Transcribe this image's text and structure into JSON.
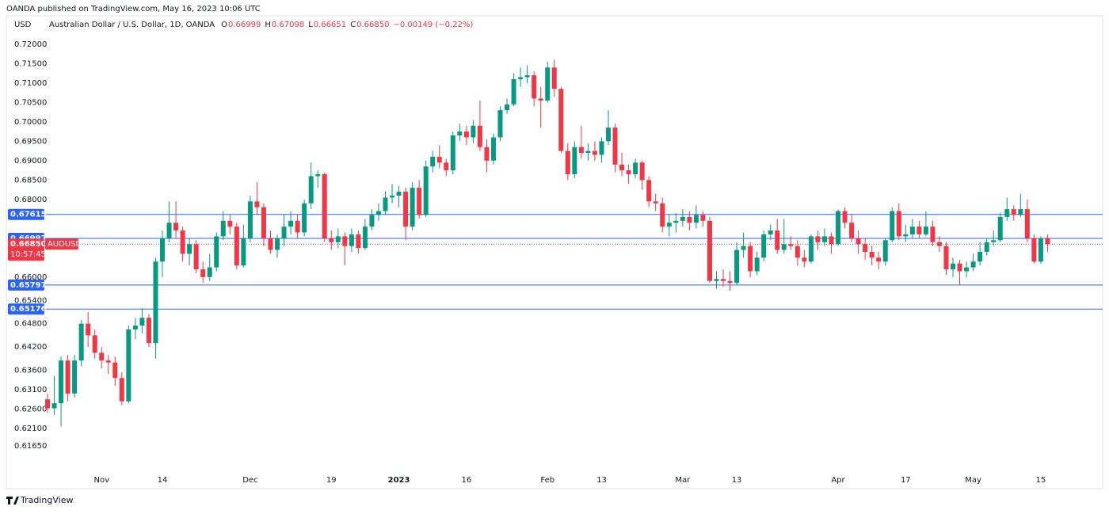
{
  "header": {
    "publisher": "OANDA published on TradingView.com, May 16, 2023 10:06 UTC"
  },
  "footer": {
    "brand": "TradingView"
  },
  "chart_data": {
    "type": "candlestick",
    "title": "Australian Dollar / U.S. Dollar, 1D, OANDA",
    "currency": "USD",
    "ohlc_legend": [
      {
        "key": "O",
        "value": "0.66999"
      },
      {
        "key": "H",
        "value": "0.67098"
      },
      {
        "key": "L",
        "value": "0.66651"
      },
      {
        "key": "C",
        "value": "0.66850"
      }
    ],
    "change": "−0.00149 (−0.22%)",
    "up_color": "#089981",
    "down_color": "#f23645",
    "line_color": "#2962ff",
    "grid": false,
    "ylim": [
      0.6059,
      0.7269
    ],
    "yticks": [
      {
        "value": 0.72,
        "label": "0.72000"
      },
      {
        "value": 0.715,
        "label": "0.71500"
      },
      {
        "value": 0.71,
        "label": "0.71000"
      },
      {
        "value": 0.705,
        "label": "0.70500"
      },
      {
        "value": 0.7,
        "label": "0.70000"
      },
      {
        "value": 0.695,
        "label": "0.69500"
      },
      {
        "value": 0.69,
        "label": "0.69000"
      },
      {
        "value": 0.685,
        "label": "0.68500"
      },
      {
        "value": 0.68,
        "label": "0.68000"
      },
      {
        "value": 0.66,
        "label": "0.66000"
      },
      {
        "value": 0.654,
        "label": "0.65400"
      },
      {
        "value": 0.648,
        "label": "0.64800"
      },
      {
        "value": 0.642,
        "label": "0.64200"
      },
      {
        "value": 0.636,
        "label": "0.63600"
      },
      {
        "value": 0.631,
        "label": "0.63100"
      },
      {
        "value": 0.626,
        "label": "0.62600"
      },
      {
        "value": 0.621,
        "label": "0.62100"
      },
      {
        "value": 0.6165,
        "label": "0.61650"
      }
    ],
    "price_lines": [
      {
        "value": 0.67615,
        "label": "0.67615"
      },
      {
        "value": 0.66997,
        "label": "0.66997"
      },
      {
        "value": 0.65797,
        "label": "0.65797"
      },
      {
        "value": 0.65176,
        "label": "0.65176"
      }
    ],
    "last_price": {
      "value": 0.6685,
      "label": "0.66850",
      "symbol": "AUDUSD",
      "countdown": "10:57:45"
    },
    "categories": [
      null,
      null,
      null,
      null,
      null,
      null,
      null,
      null,
      "Nov",
      null,
      null,
      null,
      null,
      null,
      null,
      null,
      null,
      "14",
      null,
      null,
      null,
      null,
      null,
      null,
      null,
      null,
      null,
      null,
      null,
      null,
      "Dec",
      null,
      null,
      null,
      null,
      null,
      null,
      null,
      null,
      null,
      null,
      null,
      "19",
      null,
      null,
      null,
      null,
      null,
      null,
      null,
      null,
      null,
      "2023",
      null,
      null,
      null,
      null,
      null,
      null,
      null,
      null,
      null,
      "16",
      null,
      null,
      null,
      null,
      null,
      null,
      null,
      null,
      null,
      null,
      null,
      "Feb",
      null,
      null,
      null,
      null,
      null,
      null,
      null,
      "13",
      null,
      null,
      null,
      null,
      null,
      null,
      null,
      null,
      null,
      null,
      null,
      "Mar",
      null,
      null,
      null,
      null,
      null,
      null,
      null,
      "13",
      null,
      null,
      null,
      null,
      null,
      null,
      null,
      null,
      null,
      null,
      null,
      null,
      null,
      null,
      "Apr",
      null,
      null,
      null,
      null,
      null,
      null,
      null,
      null,
      null,
      "17",
      null,
      null,
      null,
      null,
      null,
      null,
      null,
      null,
      null,
      "May",
      null,
      null,
      null,
      null,
      null,
      null,
      null,
      null,
      null,
      "15",
      null
    ],
    "open": [
      0.6285,
      0.6262,
      0.6275,
      0.6385,
      0.63,
      0.6385,
      0.648,
      0.645,
      0.6405,
      0.6385,
      0.638,
      0.634,
      0.628,
      0.6465,
      0.6475,
      0.6495,
      0.643,
      0.664,
      0.67,
      0.674,
      0.672,
      0.666,
      0.6685,
      0.662,
      0.66,
      0.6625,
      0.6705,
      0.6745,
      0.673,
      0.663,
      0.67,
      0.6795,
      0.678,
      0.67,
      0.667,
      0.67,
      0.673,
      0.6745,
      0.6715,
      0.679,
      0.686,
      0.6865,
      0.67,
      0.669,
      0.6705,
      0.668,
      0.671,
      0.6675,
      0.673,
      0.676,
      0.677,
      0.6805,
      0.681,
      0.682,
      0.673,
      0.683,
      0.676,
      0.6885,
      0.691,
      0.6895,
      0.6875,
      0.6965,
      0.6975,
      0.696,
      0.699,
      0.6935,
      0.69,
      0.696,
      0.703,
      0.7045,
      0.711,
      0.7115,
      0.712,
      0.706,
      0.7055,
      0.714,
      0.7085,
      0.6925,
      0.6865,
      0.6935,
      0.692,
      0.6925,
      0.6915,
      0.695,
      0.6985,
      0.689,
      0.6875,
      0.6865,
      0.6895,
      0.685,
      0.6795,
      0.679,
      0.673,
      0.674,
      0.6745,
      0.6755,
      0.674,
      0.676,
      0.6745,
      0.659,
      0.6595,
      0.659,
      0.6585,
      0.667,
      0.668,
      0.6615,
      0.665,
      0.671,
      0.672,
      0.667,
      0.6685,
      0.668,
      0.665,
      0.664,
      0.6705,
      0.669,
      0.6705,
      0.6685,
      0.677,
      0.674,
      0.67,
      0.6685,
      0.6665,
      0.665,
      0.664,
      0.6695,
      0.677,
      0.6705,
      0.671,
      0.673,
      0.671,
      0.673,
      0.669,
      0.668,
      0.662,
      0.6635,
      0.6615,
      0.6625,
      0.664,
      0.6665,
      0.669,
      0.6695,
      0.6755,
      0.6775,
      0.676,
      0.6775,
      0.67,
      0.664,
      0.66999
    ],
    "high": [
      0.63,
      0.6345,
      0.6395,
      0.64,
      0.64,
      0.649,
      0.651,
      0.6465,
      0.642,
      0.64,
      0.6395,
      0.6355,
      0.6475,
      0.6495,
      0.652,
      0.6505,
      0.665,
      0.672,
      0.6795,
      0.6795,
      0.673,
      0.67,
      0.6695,
      0.664,
      0.666,
      0.6715,
      0.677,
      0.676,
      0.674,
      0.6735,
      0.681,
      0.6845,
      0.679,
      0.672,
      0.671,
      0.676,
      0.677,
      0.676,
      0.68,
      0.6895,
      0.6875,
      0.687,
      0.672,
      0.6725,
      0.6715,
      0.6725,
      0.672,
      0.675,
      0.6775,
      0.679,
      0.682,
      0.684,
      0.6835,
      0.683,
      0.6845,
      0.685,
      0.69,
      0.6925,
      0.694,
      0.6905,
      0.6975,
      0.6995,
      0.699,
      0.7005,
      0.7055,
      0.6955,
      0.697,
      0.704,
      0.706,
      0.7125,
      0.714,
      0.7145,
      0.713,
      0.709,
      0.7155,
      0.716,
      0.709,
      0.6945,
      0.695,
      0.699,
      0.6945,
      0.695,
      0.696,
      0.703,
      0.6995,
      0.692,
      0.689,
      0.6905,
      0.69,
      0.686,
      0.6815,
      0.6805,
      0.676,
      0.6765,
      0.6775,
      0.677,
      0.6785,
      0.677,
      0.6755,
      0.6615,
      0.662,
      0.6615,
      0.669,
      0.6715,
      0.669,
      0.6665,
      0.672,
      0.6735,
      0.675,
      0.675,
      0.6705,
      0.6695,
      0.667,
      0.671,
      0.672,
      0.6725,
      0.6715,
      0.6775,
      0.678,
      0.676,
      0.672,
      0.67,
      0.668,
      0.6665,
      0.67,
      0.678,
      0.679,
      0.6735,
      0.675,
      0.6745,
      0.677,
      0.6745,
      0.6705,
      0.669,
      0.665,
      0.6645,
      0.664,
      0.666,
      0.669,
      0.67,
      0.672,
      0.6765,
      0.6805,
      0.6785,
      0.6815,
      0.68,
      0.671,
      0.6705,
      0.67098
    ],
    "low": [
      0.625,
      0.6245,
      0.6215,
      0.628,
      0.629,
      0.637,
      0.642,
      0.639,
      0.6365,
      0.635,
      0.632,
      0.627,
      0.6275,
      0.644,
      0.6455,
      0.642,
      0.639,
      0.66,
      0.669,
      0.67,
      0.664,
      0.663,
      0.661,
      0.6585,
      0.659,
      0.6615,
      0.6695,
      0.671,
      0.662,
      0.6625,
      0.669,
      0.676,
      0.668,
      0.666,
      0.665,
      0.668,
      0.671,
      0.67,
      0.6705,
      0.6775,
      0.683,
      0.669,
      0.667,
      0.6675,
      0.663,
      0.6665,
      0.666,
      0.667,
      0.672,
      0.6745,
      0.676,
      0.679,
      0.678,
      0.6695,
      0.672,
      0.675,
      0.6755,
      0.687,
      0.688,
      0.686,
      0.6865,
      0.695,
      0.694,
      0.6945,
      0.6925,
      0.687,
      0.689,
      0.695,
      0.702,
      0.704,
      0.709,
      0.71,
      0.704,
      0.6985,
      0.705,
      0.7065,
      0.692,
      0.685,
      0.6855,
      0.6905,
      0.69,
      0.69,
      0.6895,
      0.694,
      0.687,
      0.686,
      0.684,
      0.6855,
      0.6825,
      0.678,
      0.677,
      0.6715,
      0.6705,
      0.6715,
      0.673,
      0.672,
      0.6725,
      0.673,
      0.6585,
      0.657,
      0.6575,
      0.6565,
      0.658,
      0.665,
      0.66,
      0.6605,
      0.664,
      0.6695,
      0.666,
      0.666,
      0.667,
      0.663,
      0.6625,
      0.6635,
      0.667,
      0.668,
      0.666,
      0.668,
      0.6725,
      0.669,
      0.666,
      0.6645,
      0.663,
      0.662,
      0.663,
      0.669,
      0.6695,
      0.669,
      0.67,
      0.67,
      0.6705,
      0.668,
      0.6665,
      0.6605,
      0.66,
      0.658,
      0.66,
      0.6615,
      0.663,
      0.6655,
      0.668,
      0.669,
      0.6745,
      0.6745,
      0.6755,
      0.669,
      0.6635,
      0.6635,
      0.66651
    ],
    "close": [
      0.6262,
      0.6275,
      0.6385,
      0.63,
      0.6385,
      0.648,
      0.645,
      0.6405,
      0.6385,
      0.638,
      0.634,
      0.628,
      0.6465,
      0.6475,
      0.6495,
      0.643,
      0.664,
      0.67,
      0.674,
      0.672,
      0.666,
      0.6685,
      0.662,
      0.66,
      0.6625,
      0.6705,
      0.6745,
      0.673,
      0.663,
      0.67,
      0.6795,
      0.678,
      0.67,
      0.667,
      0.67,
      0.673,
      0.6745,
      0.6715,
      0.679,
      0.686,
      0.6865,
      0.67,
      0.669,
      0.6705,
      0.668,
      0.671,
      0.6675,
      0.673,
      0.676,
      0.677,
      0.6805,
      0.681,
      0.682,
      0.673,
      0.683,
      0.676,
      0.6885,
      0.691,
      0.6895,
      0.6875,
      0.6965,
      0.6975,
      0.696,
      0.699,
      0.6935,
      0.69,
      0.696,
      0.703,
      0.7045,
      0.711,
      0.7115,
      0.712,
      0.706,
      0.7055,
      0.714,
      0.7085,
      0.6925,
      0.6865,
      0.6935,
      0.692,
      0.6925,
      0.6915,
      0.695,
      0.6985,
      0.689,
      0.6875,
      0.6865,
      0.6895,
      0.685,
      0.6795,
      0.679,
      0.673,
      0.674,
      0.6745,
      0.6755,
      0.674,
      0.676,
      0.6745,
      0.659,
      0.6595,
      0.659,
      0.6585,
      0.667,
      0.668,
      0.6615,
      0.665,
      0.671,
      0.672,
      0.667,
      0.6685,
      0.668,
      0.665,
      0.664,
      0.6705,
      0.669,
      0.6705,
      0.6685,
      0.677,
      0.674,
      0.67,
      0.6685,
      0.6665,
      0.665,
      0.664,
      0.6695,
      0.677,
      0.6705,
      0.671,
      0.673,
      0.671,
      0.673,
      0.669,
      0.668,
      0.662,
      0.6635,
      0.6615,
      0.6625,
      0.664,
      0.6665,
      0.669,
      0.6695,
      0.6755,
      0.6775,
      0.676,
      0.6775,
      0.67,
      0.664,
      0.67,
      0.6685
    ]
  }
}
